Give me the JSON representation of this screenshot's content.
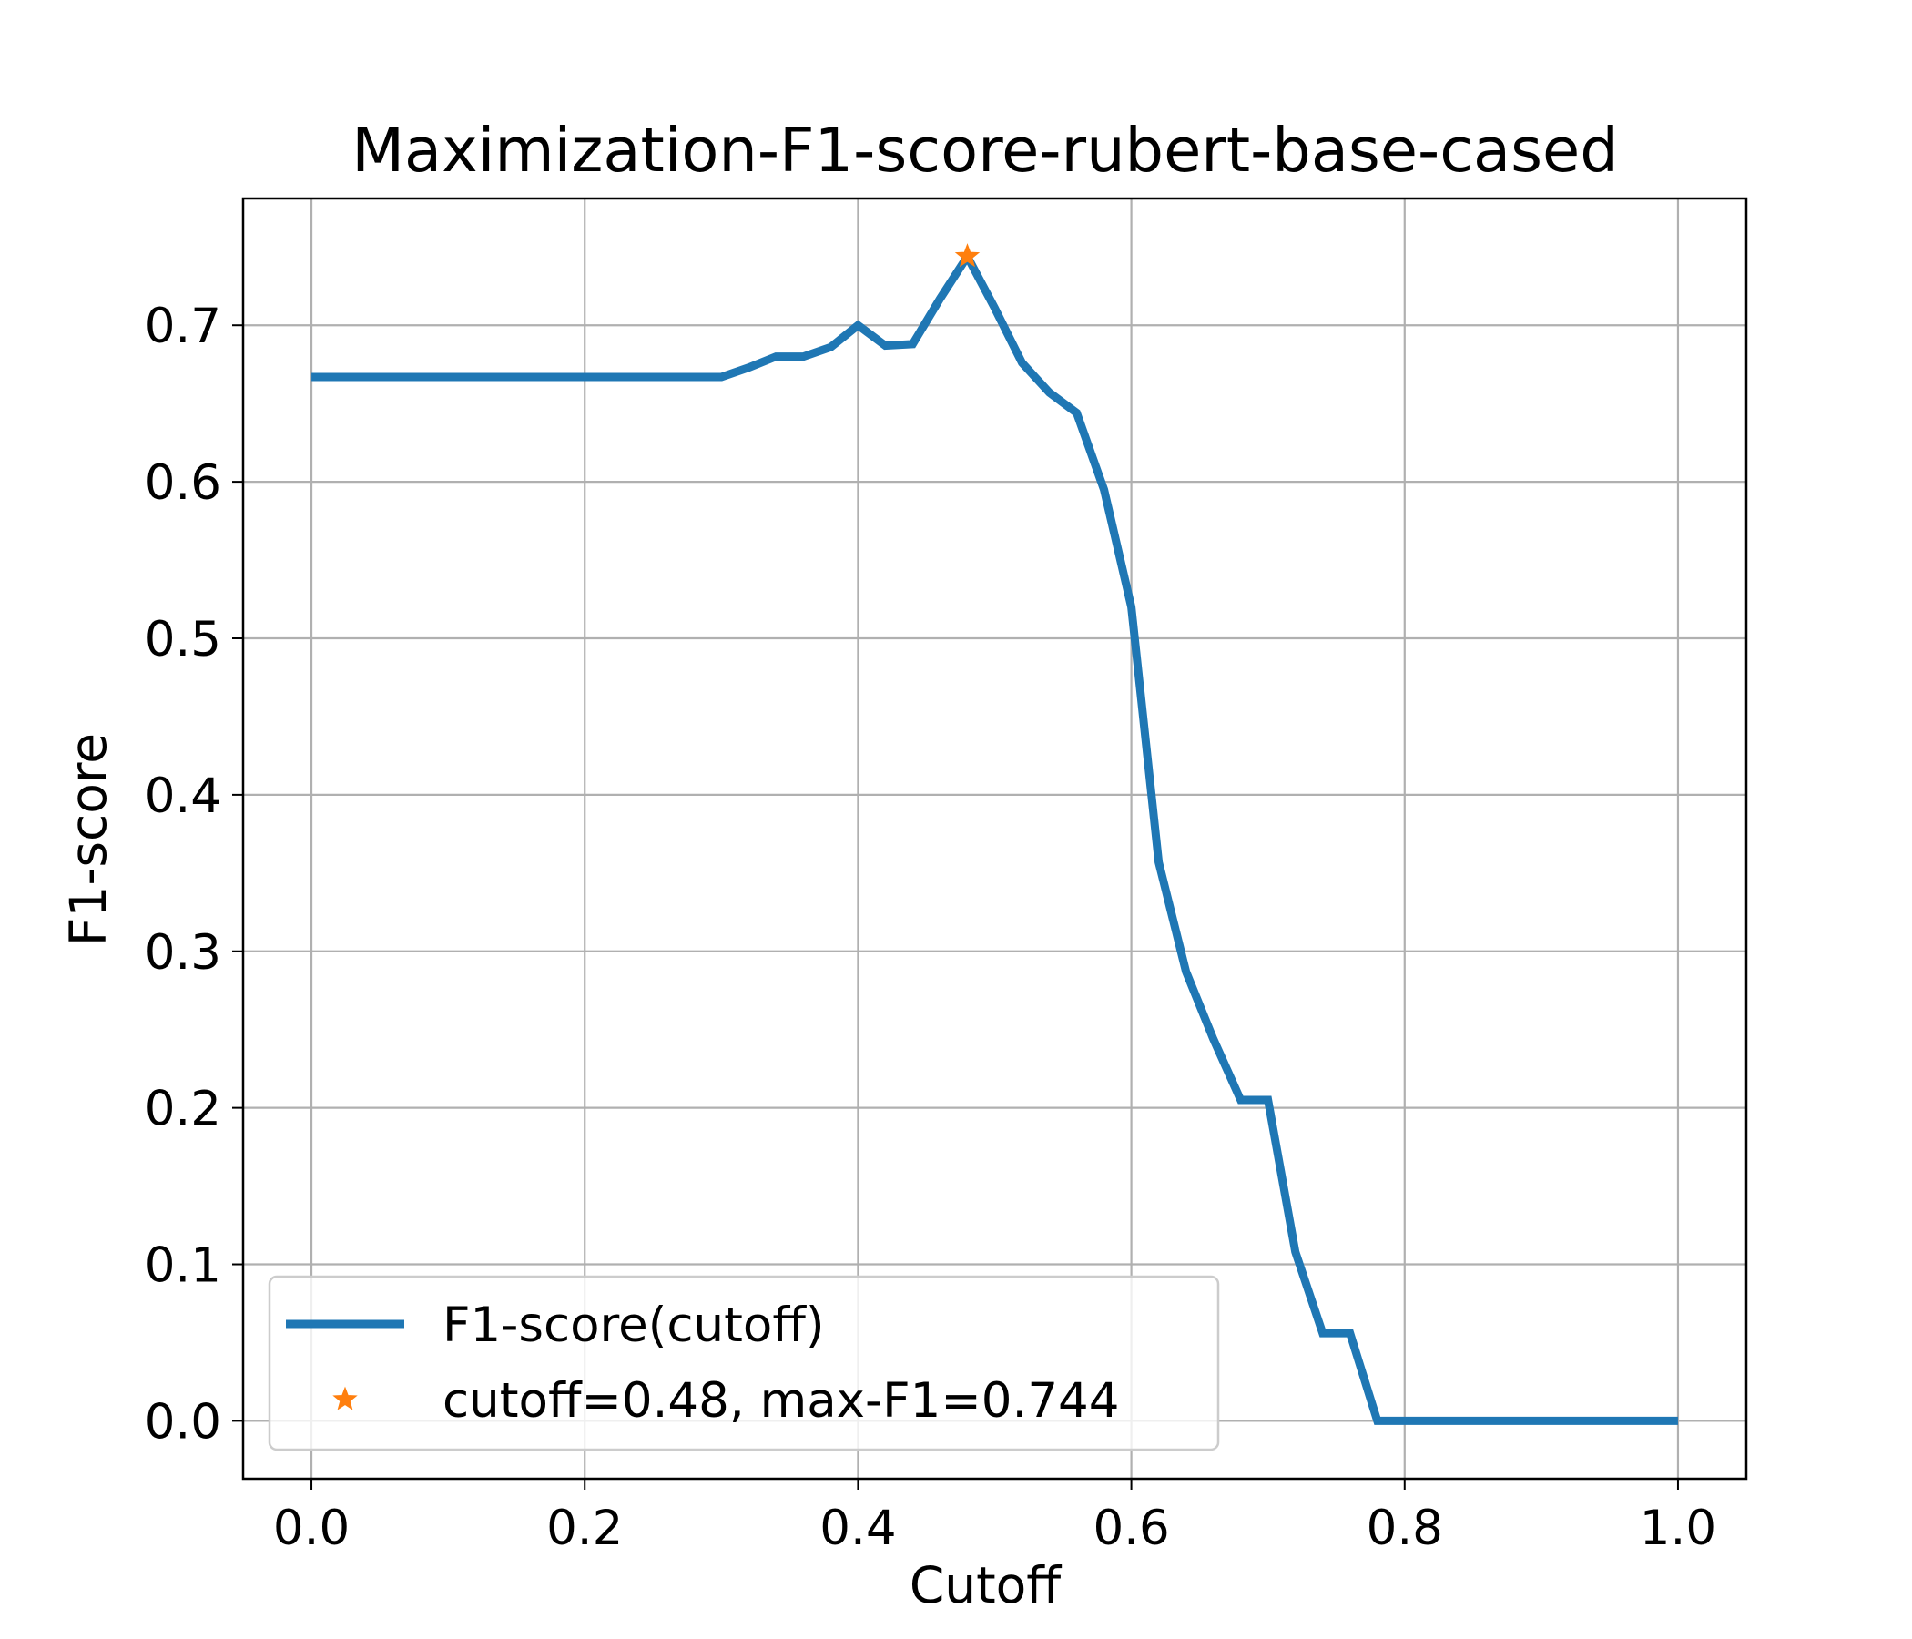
{
  "chart_data": {
    "type": "line",
    "title": "Maximization-F1-score-rubert-base-cased",
    "xlabel": "Cutoff",
    "ylabel": "F1-score",
    "xlim": [
      -0.05,
      1.05
    ],
    "ylim": [
      -0.037,
      0.781
    ],
    "xticks": [
      0.0,
      0.2,
      0.4,
      0.6,
      0.8,
      1.0
    ],
    "xtick_labels": [
      "0.0",
      "0.2",
      "0.4",
      "0.6",
      "0.8",
      "1.0"
    ],
    "yticks": [
      0.0,
      0.1,
      0.2,
      0.3,
      0.4,
      0.5,
      0.6,
      0.7
    ],
    "ytick_labels": [
      "0.0",
      "0.1",
      "0.2",
      "0.3",
      "0.4",
      "0.5",
      "0.6",
      "0.7"
    ],
    "grid": true,
    "legend_position": "lower-left",
    "series": [
      {
        "name": "F1-score(cutoff)",
        "color": "#1f77b4",
        "kind": "line",
        "x": [
          0.0,
          0.02,
          0.04,
          0.06,
          0.08,
          0.1,
          0.12,
          0.14,
          0.16,
          0.18,
          0.2,
          0.22,
          0.24,
          0.26,
          0.28,
          0.3,
          0.32,
          0.34,
          0.36,
          0.38,
          0.4,
          0.42,
          0.44,
          0.46,
          0.48,
          0.5,
          0.52,
          0.54,
          0.56,
          0.58,
          0.6,
          0.62,
          0.64,
          0.66,
          0.68,
          0.7,
          0.72,
          0.74,
          0.76,
          0.78,
          0.8,
          0.82,
          0.84,
          0.86,
          0.88,
          0.9,
          0.92,
          0.94,
          0.96,
          0.98,
          1.0
        ],
        "y": [
          0.667,
          0.667,
          0.667,
          0.667,
          0.667,
          0.667,
          0.667,
          0.667,
          0.667,
          0.667,
          0.667,
          0.667,
          0.667,
          0.667,
          0.667,
          0.667,
          0.673,
          0.68,
          0.68,
          0.686,
          0.7,
          0.687,
          0.688,
          0.717,
          0.744,
          0.711,
          0.676,
          0.657,
          0.644,
          0.595,
          0.52,
          0.357,
          0.287,
          0.244,
          0.205,
          0.205,
          0.108,
          0.056,
          0.056,
          0.0,
          0.0,
          0.0,
          0.0,
          0.0,
          0.0,
          0.0,
          0.0,
          0.0,
          0.0,
          0.0,
          0.0
        ]
      },
      {
        "name": "cutoff=0.48, max-F1=0.744",
        "color": "#ff7f0e",
        "kind": "marker",
        "marker": "star",
        "x": [
          0.48
        ],
        "y": [
          0.744
        ]
      }
    ]
  }
}
